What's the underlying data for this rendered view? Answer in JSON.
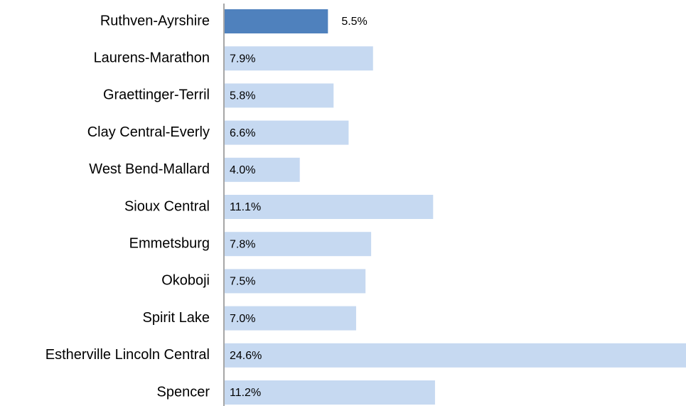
{
  "chart_data": {
    "type": "barh",
    "categories": [
      "Ruthven-Ayrshire",
      "Laurens-Marathon",
      "Graettinger-Terril",
      "Clay Central-Everly",
      "West Bend-Mallard",
      "Sioux Central",
      "Emmetsburg",
      "Okoboji",
      "Spirit Lake",
      "Estherville Lincoln Central",
      "Spencer"
    ],
    "values": [
      5.5,
      7.9,
      5.8,
      6.6,
      4.0,
      11.1,
      7.8,
      7.5,
      7.0,
      24.6,
      11.2
    ],
    "value_labels": [
      "5.5%",
      "7.9%",
      "5.8%",
      "6.6%",
      "4.0%",
      "11.1%",
      "7.8%",
      "7.5%",
      "7.0%",
      "24.6%",
      "11.2%"
    ],
    "colors": [
      "#4f81bd",
      "#c6d9f1",
      "#c6d9f1",
      "#c6d9f1",
      "#c6d9f1",
      "#c6d9f1",
      "#c6d9f1",
      "#c6d9f1",
      "#c6d9f1",
      "#c6d9f1",
      "#c6d9f1"
    ],
    "xlim": [
      0,
      24.6
    ]
  }
}
